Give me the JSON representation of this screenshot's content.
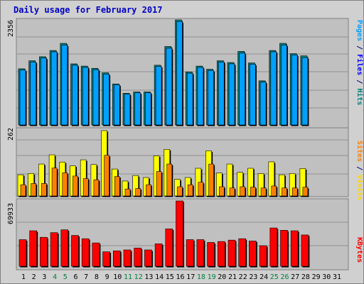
{
  "title": "Daily usage for February 2017",
  "panels": {
    "top": {
      "max_label": "2356",
      "side_labels": [
        {
          "text": "Pages",
          "color": "#00a0ff"
        },
        {
          "text": " / ",
          "color": "#000080"
        },
        {
          "text": "Files",
          "color": "#0000ff"
        },
        {
          "text": " / ",
          "color": "#000080"
        },
        {
          "text": "Hits",
          "color": "#008080"
        }
      ]
    },
    "middle": {
      "max_label": "262",
      "side_labels": [
        {
          "text": "Sites",
          "color": "#ff8000"
        },
        {
          "text": " / ",
          "color": "#000080"
        },
        {
          "text": "Visits",
          "color": "#ffd700"
        }
      ]
    },
    "bottom": {
      "max_label": "69933",
      "side_labels": [
        {
          "text": "KBytes",
          "color": "#ff0000"
        }
      ]
    }
  },
  "colors": {
    "hits": "#008080",
    "files": "#0000ff",
    "pages": "#00a0ff",
    "visits": "#ffff00",
    "sites": "#ff8000",
    "kbytes": "#ff0000",
    "weekday_label": "#000000",
    "weekend_label": "#008040"
  },
  "chart_data": [
    {
      "type": "bar",
      "title": "Daily usage for February 2017",
      "ylabel": "Pages / Files / Hits",
      "ylim": [
        0,
        2356
      ],
      "categories": [
        "1",
        "2",
        "3",
        "4",
        "5",
        "6",
        "7",
        "8",
        "9",
        "10",
        "11",
        "12",
        "13",
        "14",
        "15",
        "16",
        "17",
        "18",
        "19",
        "20",
        "21",
        "22",
        "23",
        "24",
        "25",
        "26",
        "27",
        "28",
        "29",
        "30",
        "31"
      ],
      "weekend_days": [
        "4",
        "5",
        "11",
        "12",
        "18",
        "19",
        "25",
        "26"
      ],
      "series": [
        {
          "name": "Hits",
          "values": [
            1260,
            1440,
            1530,
            1670,
            1830,
            1370,
            1320,
            1270,
            1170,
            920,
            710,
            740,
            740,
            1340,
            1760,
            2356,
            1190,
            1320,
            1250,
            1440,
            1400,
            1650,
            1390,
            990,
            1670,
            1830,
            1600,
            1550,
            null,
            null,
            null
          ]
        },
        {
          "name": "Files",
          "values": [
            1230,
            1410,
            1500,
            1640,
            1790,
            1340,
            1290,
            1240,
            1140,
            900,
            690,
            720,
            720,
            1310,
            1720,
            2320,
            1160,
            1290,
            1220,
            1410,
            1370,
            1610,
            1360,
            960,
            1640,
            1790,
            1570,
            1510,
            null,
            null,
            null
          ]
        }
      ]
    },
    {
      "type": "bar",
      "ylabel": "Sites / Visits",
      "ylim": [
        0,
        262
      ],
      "categories": [
        "1",
        "2",
        "3",
        "4",
        "5",
        "6",
        "7",
        "8",
        "9",
        "10",
        "11",
        "12",
        "13",
        "14",
        "15",
        "16",
        "17",
        "18",
        "19",
        "20",
        "21",
        "22",
        "23",
        "24",
        "25",
        "26",
        "27",
        "28",
        "29",
        "30",
        "31"
      ],
      "series": [
        {
          "name": "Visits",
          "values": [
            85,
            90,
            128,
            165,
            136,
            121,
            145,
            126,
            262,
            108,
            60,
            82,
            74,
            161,
            187,
            67,
            74,
            111,
            181,
            92,
            128,
            95,
            111,
            90,
            137,
            85,
            90,
            110,
            null,
            null,
            null
          ]
        },
        {
          "name": "Sites",
          "values": [
            45,
            50,
            50,
            112,
            93,
            80,
            70,
            65,
            163,
            78,
            28,
            30,
            45,
            98,
            128,
            37,
            45,
            55,
            128,
            37,
            32,
            37,
            35,
            32,
            40,
            32,
            32,
            35,
            null,
            null,
            null
          ]
        }
      ]
    },
    {
      "type": "bar",
      "ylabel": "KBytes",
      "ylim": [
        0,
        69933
      ],
      "categories": [
        "1",
        "2",
        "3",
        "4",
        "5",
        "6",
        "7",
        "8",
        "9",
        "10",
        "11",
        "12",
        "13",
        "14",
        "15",
        "16",
        "17",
        "18",
        "19",
        "20",
        "21",
        "22",
        "23",
        "24",
        "25",
        "26",
        "27",
        "28",
        "29",
        "30",
        "31"
      ],
      "series": [
        {
          "name": "KBytes",
          "values": [
            28500,
            38000,
            31000,
            36000,
            39000,
            33000,
            29500,
            25000,
            15500,
            16500,
            17500,
            19500,
            17500,
            24000,
            40000,
            69933,
            28500,
            28500,
            25500,
            26500,
            28000,
            29500,
            27000,
            22000,
            41000,
            38500,
            38000,
            33500,
            null,
            null,
            null
          ]
        }
      ]
    }
  ]
}
